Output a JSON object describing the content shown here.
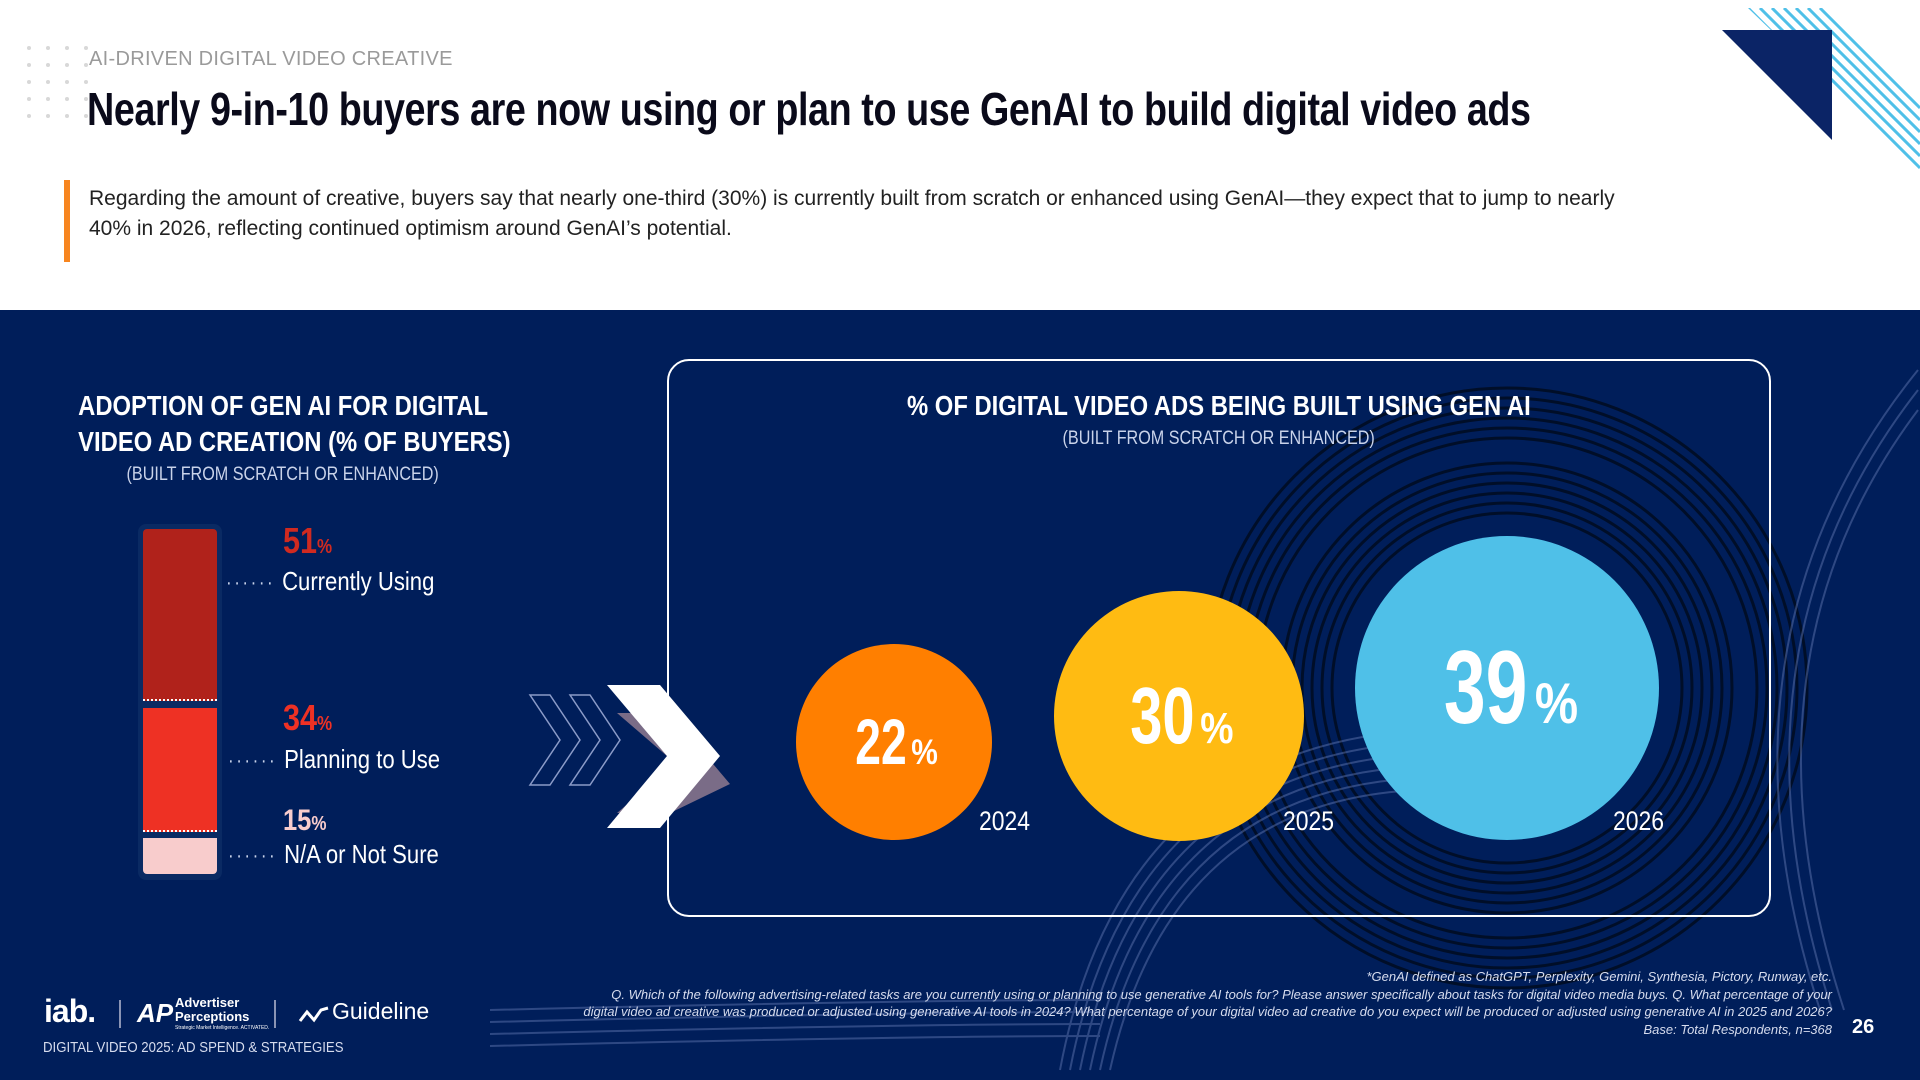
{
  "header": {
    "kicker": "AI-DRIVEN DIGITAL VIDEO CREATIVE",
    "title": "Nearly 9-in-10 buyers are now using or plan to use GenAI to build digital video ads",
    "paragraph": "Regarding the amount of creative, buyers say that nearly one-third (30%) is currently built from scratch or enhanced using GenAI—they expect that to jump to nearly 40% in 2026, reflecting continued optimism around GenAI’s potential."
  },
  "left_chart": {
    "title_line1": "ADOPTION OF GEN AI FOR DIGITAL",
    "title_line2": "VIDEO AD CREATION (% OF BUYERS)",
    "subtitle": "(BUILT FROM SCRATCH OR ENHANCED)",
    "segments": [
      {
        "value": "51",
        "unit": "%",
        "label": "Currently Using",
        "color": "#b0221b"
      },
      {
        "value": "34",
        "unit": "%",
        "label": "Planning to Use",
        "color": "#ee3124"
      },
      {
        "value": "15",
        "unit": "%",
        "label": "N/A or Not Sure",
        "color": "#f8cccc"
      }
    ]
  },
  "right_chart": {
    "title": "% OF DIGITAL VIDEO ADS BEING BUILT USING GEN AI",
    "subtitle": "(BUILT FROM SCRATCH OR ENHANCED)",
    "items": [
      {
        "value": "22",
        "unit": "%",
        "year": "2024",
        "color": "#ff7f00"
      },
      {
        "value": "30",
        "unit": "%",
        "year": "2025",
        "color": "#ffbb12"
      },
      {
        "value": "39",
        "unit": "%",
        "year": "2026",
        "color": "#4fc0e8"
      }
    ]
  },
  "footer": {
    "logo_iab": "iab.",
    "logo_ap_line1": "Advertiser",
    "logo_ap_line2": "Perceptions",
    "logo_ap_tagline": "Strategic Market Intelligence. ACTIVATED.",
    "logo_guideline": "Guideline",
    "report": "DIGITAL VIDEO 2025: AD SPEND & STRATEGIES",
    "note1": "*GenAI defined as ChatGPT, Perplexity, Gemini, Synthesia, Pictory, Runway, etc.",
    "note2": "Q. Which of the following advertising-related tasks are you currently using or planning to use generative AI tools for? Please answer specifically about tasks for digital video media buys. Q. What percentage of your",
    "note3": "digital video ad creative was produced or adjusted using generative AI tools in 2024? What percentage of your digital video ad creative do you expect will be produced or adjusted using generative AI in 2025 and 2026?",
    "base": "Base: Total Respondents, n=368",
    "page": "26"
  },
  "colors": {
    "navy": "#001e5a",
    "accent": "#f7851f"
  }
}
